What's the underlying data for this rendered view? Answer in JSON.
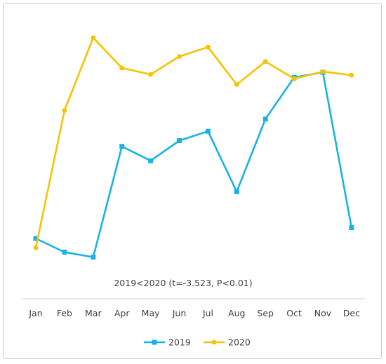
{
  "chart_data": {
    "type": "line",
    "categories": [
      "Jan",
      "Feb",
      "Mar",
      "Apr",
      "May",
      "Jun",
      "Jul",
      "Aug",
      "Sep",
      "Oct",
      "Nov",
      "Dec"
    ],
    "series": [
      {
        "name": "2019",
        "color": "#17b3e6",
        "marker": "square",
        "values": [
          7.8,
          5.9,
          5.2,
          20.6,
          18.6,
          21.4,
          22.7,
          14.3,
          24.4,
          30.2,
          30.9,
          9.3
        ]
      },
      {
        "name": "2020",
        "color": "#f5c400",
        "marker": "circle",
        "values": [
          6.5,
          25.6,
          35.7,
          31.5,
          30.6,
          33.1,
          34.4,
          29.2,
          32.4,
          30.0,
          31.0,
          30.5
        ]
      }
    ],
    "annotation": "2019<2020 (t=-3.523, P<0.01)",
    "ylim": [
      0,
      39
    ],
    "yaxis_visible": false,
    "grid": false,
    "legend_position": "bottom"
  }
}
